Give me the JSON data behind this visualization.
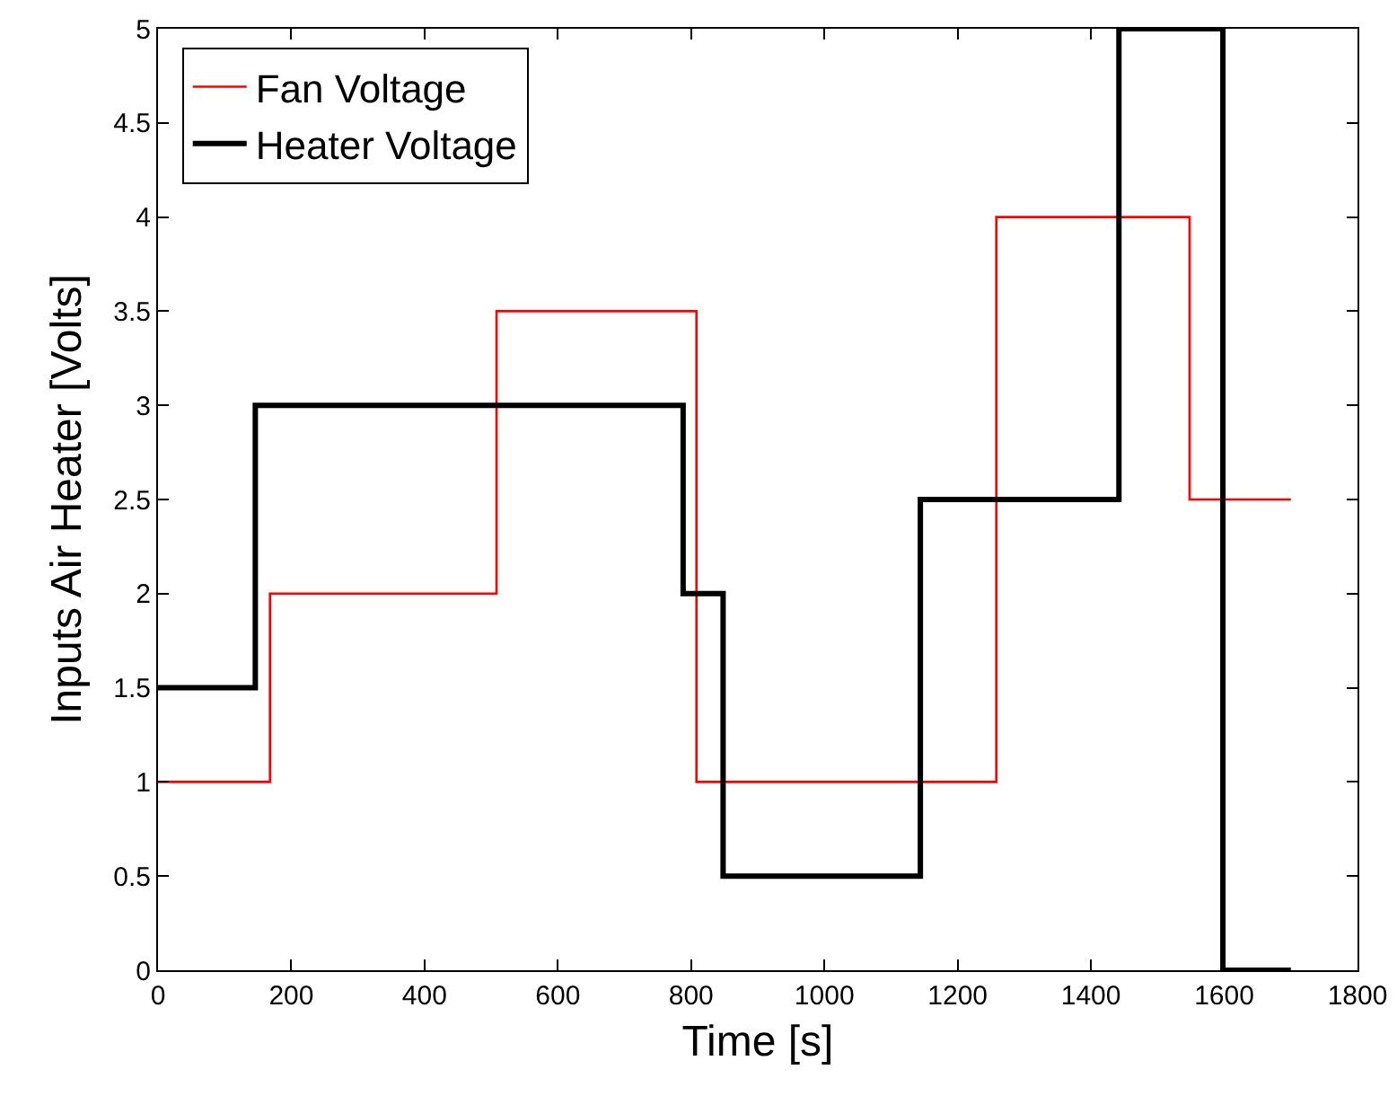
{
  "chart_data": {
    "type": "step",
    "xlabel": "Time [s]",
    "ylabel": "Inputs Air Heater [Volts]",
    "series": [
      {
        "name": "Fan Voltage",
        "color": "#ff0000",
        "x": [
          0,
          168,
          508,
          808,
          1258,
          1548,
          1700
        ],
        "values": [
          1,
          2,
          3.5,
          1,
          4,
          2.5,
          2.5
        ]
      },
      {
        "name": "Heater Voltage",
        "color": "#000000",
        "x": [
          0,
          146,
          788,
          848,
          1144,
          1442,
          1598,
          1700
        ],
        "values": [
          1.5,
          3,
          2,
          0.5,
          2.5,
          5,
          0,
          0
        ]
      }
    ],
    "xlim": [
      0,
      1800
    ],
    "xticks": [
      0,
      200,
      400,
      600,
      800,
      1000,
      1200,
      1400,
      1600,
      1800
    ],
    "ylim": [
      0,
      5
    ],
    "yticks": [
      0,
      0.5,
      1,
      1.5,
      2,
      2.5,
      3,
      3.5,
      4,
      4.5,
      5
    ],
    "grid": false,
    "legend": "top left",
    "line_style": "solid",
    "marker": "none"
  }
}
